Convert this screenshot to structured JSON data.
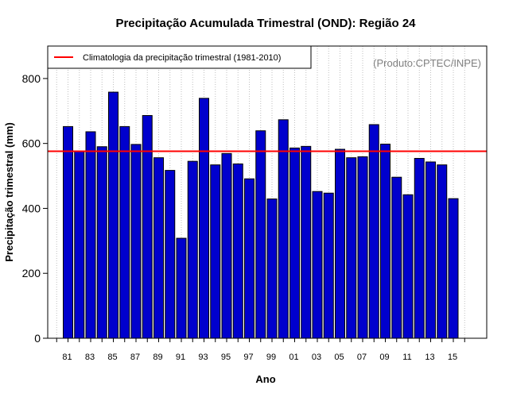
{
  "chart_data": {
    "type": "bar",
    "title": "Precipitação Acumulada Trimestral (OND): Região 24",
    "xlabel": "Ano",
    "ylabel": "Precipitação trimestral (mm)",
    "ylim": [
      0,
      900
    ],
    "yticks": [
      0,
      200,
      400,
      600,
      800
    ],
    "years": [
      1981,
      1982,
      1983,
      1984,
      1985,
      1986,
      1987,
      1988,
      1989,
      1990,
      1991,
      1992,
      1993,
      1994,
      1995,
      1996,
      1997,
      1998,
      1999,
      2000,
      2001,
      2002,
      2003,
      2004,
      2005,
      2006,
      2007,
      2008,
      2009,
      2010,
      2011,
      2012,
      2013,
      2014,
      2015
    ],
    "categories": [
      "81",
      "82",
      "83",
      "84",
      "85",
      "86",
      "87",
      "88",
      "89",
      "90",
      "91",
      "92",
      "93",
      "94",
      "95",
      "96",
      "97",
      "98",
      "99",
      "00",
      "01",
      "02",
      "03",
      "04",
      "05",
      "06",
      "07",
      "08",
      "09",
      "10",
      "11",
      "12",
      "13",
      "14",
      "15"
    ],
    "tick_labels": [
      "81",
      "83",
      "85",
      "87",
      "89",
      "91",
      "93",
      "95",
      "97",
      "99",
      "01",
      "03",
      "05",
      "07",
      "09",
      "11",
      "13",
      "15"
    ],
    "values": [
      652,
      577,
      636,
      590,
      758,
      652,
      597,
      686,
      556,
      517,
      308,
      545,
      739,
      534,
      569,
      537,
      491,
      639,
      429,
      673,
      586,
      591,
      452,
      447,
      582,
      556,
      559,
      658,
      598,
      496,
      442,
      554,
      543,
      534,
      430
    ],
    "series": [
      {
        "name": "Precipitação trimestral",
        "color": "#0000cd"
      }
    ],
    "climatology": {
      "label": "Climatologia da precipitação trimestral (1981-2010)",
      "value": 576,
      "color": "#ff0000"
    },
    "legend_position": "top-left",
    "grid": "vertical-dotted",
    "credit": "(Produto:CPTEC/INPE)"
  }
}
